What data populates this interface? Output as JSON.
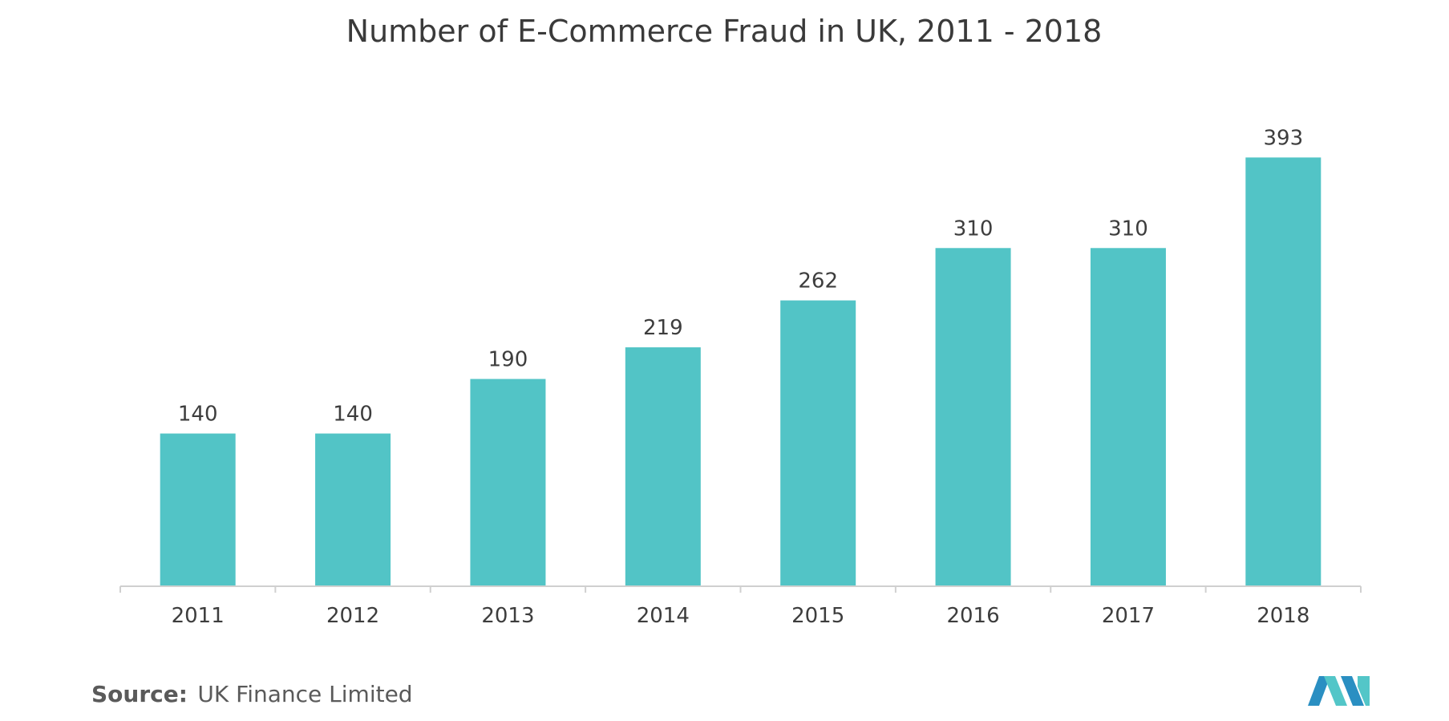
{
  "chart_data": {
    "type": "bar",
    "title": "Number of E-Commerce Fraud in UK, 2011 - 2018",
    "categories": [
      "2011",
      "2012",
      "2013",
      "2014",
      "2015",
      "2016",
      "2017",
      "2018"
    ],
    "values": [
      140,
      140,
      190,
      219,
      262,
      310,
      310,
      393
    ],
    "data_labels": [
      "140",
      "140",
      "190",
      "219",
      "262",
      "310",
      "310",
      "393"
    ],
    "xlabel": "",
    "ylabel": "",
    "ylim": [
      0,
      440
    ],
    "grid": false,
    "legend": "none",
    "bar_color": "#52c4c6"
  },
  "source": {
    "label": "Source:",
    "text": "UK Finance Limited"
  },
  "logo": {
    "icon": "mordor-intelligence-logo-icon",
    "colors": [
      "#2a8fc2",
      "#53c6c8"
    ]
  }
}
